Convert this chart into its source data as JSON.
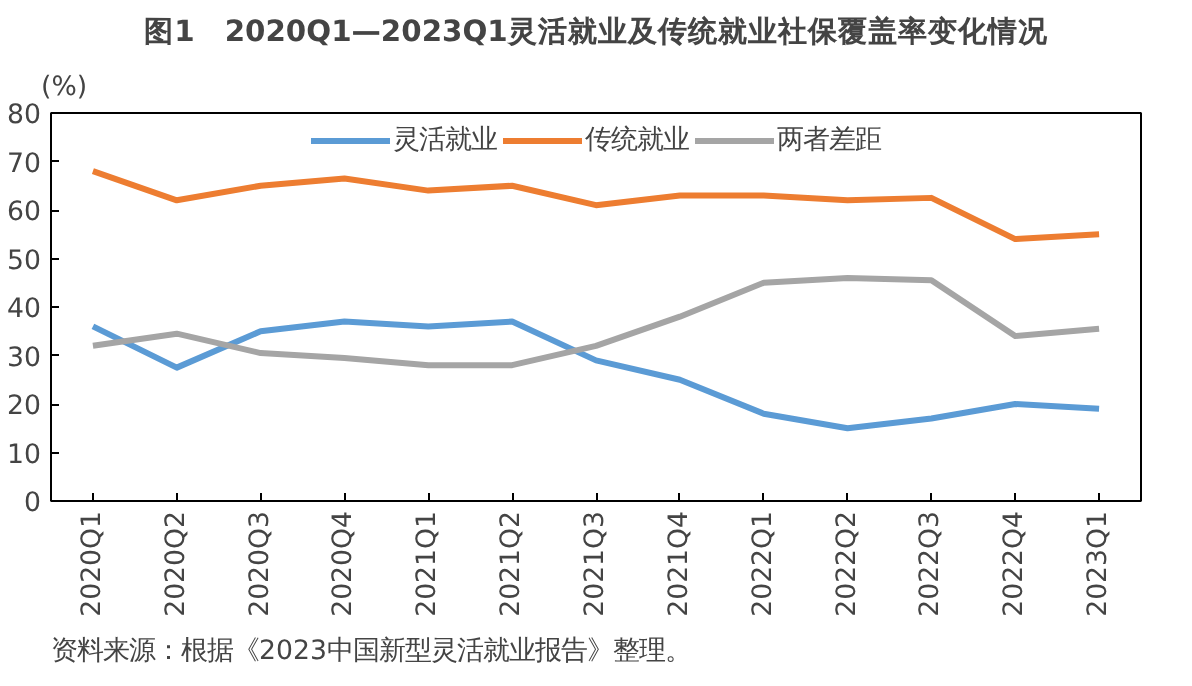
{
  "chart_data": {
    "type": "line",
    "title": "图1　2020Q1—2023Q1灵活就业及传统就业社保覆盖率变化情况",
    "ylabel": "(%)",
    "categories": [
      "2020Q1",
      "2020Q2",
      "2020Q3",
      "2020Q4",
      "2021Q1",
      "2021Q2",
      "2021Q3",
      "2021Q4",
      "2022Q1",
      "2022Q2",
      "2022Q3",
      "2022Q4",
      "2023Q1"
    ],
    "series": [
      {
        "name": "灵活就业",
        "color": "#5b9bd5",
        "values": [
          36,
          27.5,
          35,
          37,
          36,
          37,
          29,
          25,
          18,
          15,
          17,
          20,
          19
        ]
      },
      {
        "name": "传统就业",
        "color": "#ed7d31",
        "values": [
          68,
          62,
          65,
          66.5,
          64,
          65,
          61,
          63,
          63,
          62,
          62.5,
          54,
          55
        ]
      },
      {
        "name": "两者差距",
        "color": "#a5a5a5",
        "values": [
          32,
          34.5,
          30.5,
          29.5,
          28,
          28,
          32,
          38,
          45,
          46,
          45.5,
          34,
          35.5
        ]
      }
    ],
    "ylim": [
      0,
      80
    ],
    "yticks": [
      0,
      10,
      20,
      30,
      40,
      50,
      60,
      70,
      80
    ],
    "grid": false,
    "legend": "top",
    "line_style": "solid",
    "annotations": [
      "资料来源：根据《2023中国新型灵活就业报告》整理。"
    ]
  }
}
